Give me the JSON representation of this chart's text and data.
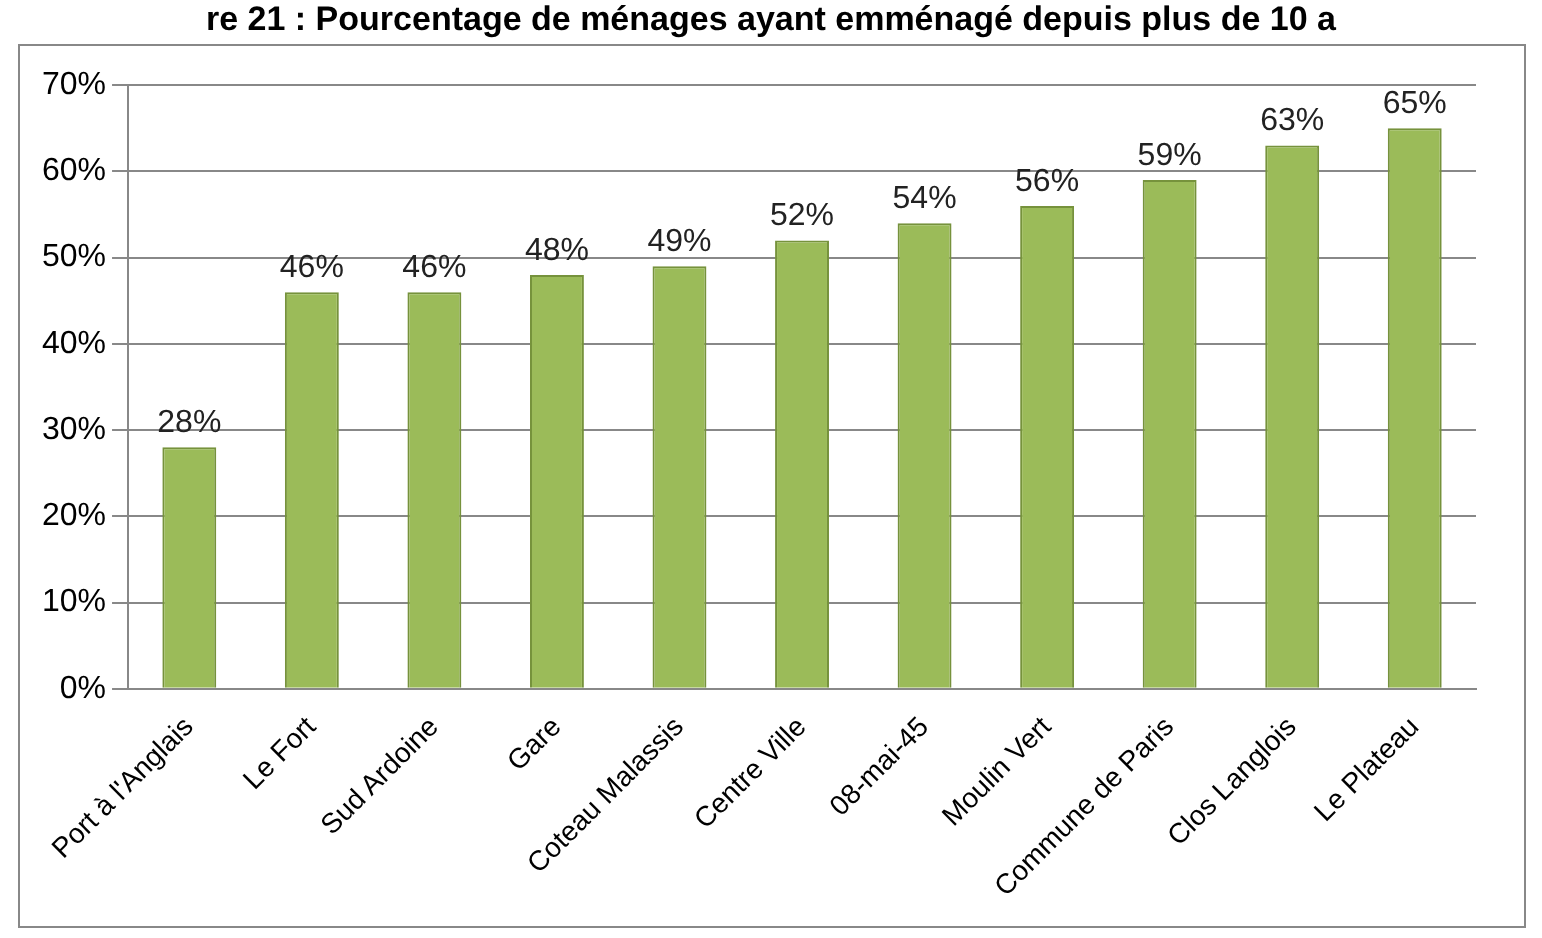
{
  "chart_data": {
    "type": "bar",
    "title": "re 21 : Pourcentage de ménages ayant emménagé depuis plus de 10 a",
    "categories": [
      "Port à l'Anglais",
      "Le Fort",
      "Sud Ardoine",
      "Gare",
      "Coteau Malassis",
      "Centre Ville",
      "08-mai-45",
      "Moulin Vert",
      "Commune de Paris",
      "Clos Langlois",
      "Le Plateau"
    ],
    "values": [
      28,
      46,
      46,
      48,
      49,
      52,
      54,
      56,
      59,
      63,
      65
    ],
    "value_labels": [
      "28%",
      "46%",
      "46%",
      "48%",
      "49%",
      "52%",
      "54%",
      "56%",
      "59%",
      "63%",
      "65%"
    ],
    "color": "#9bbb59",
    "ylim": [
      0,
      70
    ],
    "yticks": [
      {
        "value": 0,
        "label": "0%"
      },
      {
        "value": 10,
        "label": "10%"
      },
      {
        "value": 20,
        "label": "20%"
      },
      {
        "value": 30,
        "label": "30%"
      },
      {
        "value": 40,
        "label": "40%"
      },
      {
        "value": 50,
        "label": "50%"
      },
      {
        "value": 60,
        "label": "60%"
      },
      {
        "value": 70,
        "label": "70%"
      }
    ],
    "grid": "y"
  }
}
